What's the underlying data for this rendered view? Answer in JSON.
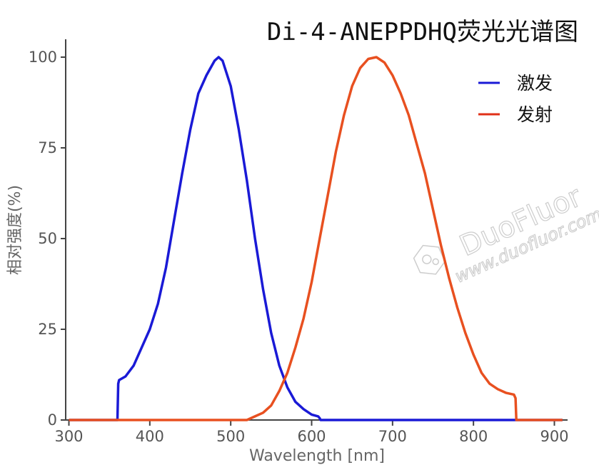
{
  "chart_data": {
    "type": "line",
    "title": "Di-4-ANEPPDHQ荧光光谱图",
    "xlabel": "Wavelength [nm]",
    "ylabel": "相对强度(%)",
    "xlim": [
      300,
      910
    ],
    "ylim": [
      0,
      100
    ],
    "xticks": [
      300,
      400,
      500,
      600,
      700,
      800,
      900
    ],
    "yticks": [
      0,
      25,
      50,
      75,
      100
    ],
    "grid": false,
    "legend_position": "top-right",
    "series": [
      {
        "name": "激发",
        "color": "#1a1ad6",
        "x": [
          300,
          360,
          361,
          362,
          370,
          380,
          390,
          400,
          410,
          420,
          430,
          440,
          450,
          460,
          470,
          480,
          485,
          490,
          500,
          510,
          520,
          530,
          540,
          550,
          560,
          570,
          580,
          590,
          600,
          608,
          610,
          611,
          620,
          700,
          800,
          910
        ],
        "y": [
          0,
          0,
          10,
          11,
          12,
          15,
          20,
          25,
          32,
          42,
          55,
          68,
          80,
          90,
          95,
          99,
          100,
          99,
          92,
          80,
          66,
          50,
          36,
          24,
          15,
          9,
          5,
          3,
          1.5,
          1,
          0.5,
          0,
          0,
          0,
          0,
          0
        ]
      },
      {
        "name": "发射",
        "color": "#e85020",
        "x": [
          300,
          350,
          400,
          450,
          500,
          520,
          530,
          540,
          550,
          560,
          570,
          580,
          590,
          600,
          610,
          620,
          630,
          640,
          650,
          660,
          670,
          680,
          690,
          700,
          710,
          720,
          730,
          740,
          750,
          760,
          770,
          780,
          790,
          800,
          810,
          820,
          830,
          840,
          850,
          852,
          853,
          870,
          910
        ],
        "y": [
          0,
          0,
          0,
          0,
          0,
          0,
          1,
          2,
          4,
          8,
          13,
          20,
          28,
          38,
          50,
          62,
          74,
          84,
          92,
          97,
          99.5,
          100,
          98.5,
          95,
          90,
          84,
          76,
          68,
          58,
          48,
          39,
          31,
          24,
          18,
          13,
          10,
          8.5,
          7.5,
          7,
          6,
          0,
          0,
          0
        ]
      }
    ]
  },
  "watermark": {
    "brand": "DuoFluor",
    "url": "www.duofluor.com"
  }
}
